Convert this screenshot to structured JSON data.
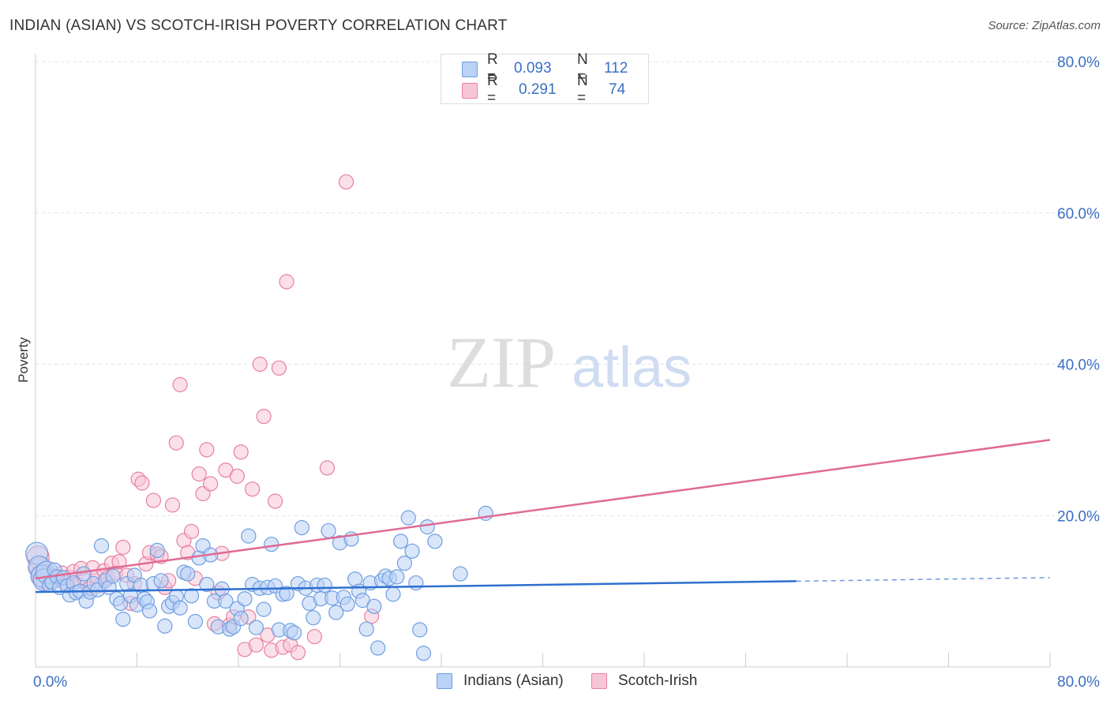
{
  "header": {
    "title": "INDIAN (ASIAN) VS SCOTCH-IRISH POVERTY CORRELATION CHART",
    "source": "Source: ZipAtlas.com"
  },
  "watermark": {
    "zip": "ZIP",
    "atlas": "atlas"
  },
  "stats": [
    {
      "r_label": "R =",
      "r_value": "0.093",
      "n_label": "N =",
      "n_value": "112",
      "color": "#6f9ee0",
      "fill": "#b9d2f5"
    },
    {
      "r_label": "R =",
      "r_value": "0.291",
      "n_label": "N =",
      "n_value": "74",
      "color": "#e87fa3",
      "fill": "#f7c6d6"
    }
  ],
  "legend": {
    "series_a": "Indians (Asian)",
    "series_b": "Scotch-Irish"
  },
  "colors": {
    "blue": "#6f9ee0",
    "blue_line": "#2e6fcf",
    "pink": "#e87fa3",
    "pink_line": "#e06a95",
    "tick_text": "#3a6fc4",
    "grid": "#e3e3e3"
  },
  "chart_data": {
    "type": "scatter",
    "xlabel": "",
    "ylabel": "Poverty",
    "xlim": [
      0,
      80
    ],
    "ylim": [
      0,
      80
    ],
    "x_tick_labels": [
      "0.0%",
      "80.0%"
    ],
    "y_ticks": [
      20,
      40,
      60,
      80
    ],
    "y_tick_labels": [
      "20.0%",
      "40.0%",
      "60.0%",
      "80.0%"
    ],
    "grid": "horizontal dashed",
    "series": [
      {
        "name": "Indians (Asian)",
        "points": [
          [
            0.1,
            15.0
          ],
          [
            0.3,
            13.2
          ],
          [
            0.5,
            12.0
          ],
          [
            0.7,
            11.5
          ],
          [
            0.9,
            12.5
          ],
          [
            1.1,
            10.8
          ],
          [
            1.3,
            11.2
          ],
          [
            1.5,
            12.8
          ],
          [
            1.7,
            11.9
          ],
          [
            1.9,
            10.5
          ],
          [
            2.2,
            11.8
          ],
          [
            2.5,
            10.7
          ],
          [
            2.7,
            9.5
          ],
          [
            3.0,
            11.1
          ],
          [
            3.2,
            9.8
          ],
          [
            3.5,
            10.0
          ],
          [
            3.8,
            12.3
          ],
          [
            4.0,
            8.7
          ],
          [
            4.3,
            9.9
          ],
          [
            4.6,
            11.0
          ],
          [
            4.9,
            10.2
          ],
          [
            5.2,
            16.0
          ],
          [
            5.5,
            11.4
          ],
          [
            5.8,
            10.5
          ],
          [
            6.1,
            12.0
          ],
          [
            6.4,
            9.0
          ],
          [
            6.7,
            8.4
          ],
          [
            6.9,
            6.3
          ],
          [
            7.2,
            11.0
          ],
          [
            7.5,
            9.4
          ],
          [
            7.8,
            12.1
          ],
          [
            8.0,
            8.2
          ],
          [
            8.3,
            10.8
          ],
          [
            8.6,
            9.0
          ],
          [
            8.8,
            8.6
          ],
          [
            9.0,
            7.4
          ],
          [
            9.3,
            11.0
          ],
          [
            9.6,
            15.4
          ],
          [
            9.9,
            11.4
          ],
          [
            10.2,
            5.4
          ],
          [
            10.5,
            8.0
          ],
          [
            10.8,
            8.5
          ],
          [
            11.1,
            9.3
          ],
          [
            11.4,
            7.8
          ],
          [
            11.7,
            12.5
          ],
          [
            12.0,
            12.3
          ],
          [
            12.3,
            9.4
          ],
          [
            12.6,
            6.0
          ],
          [
            12.9,
            14.4
          ],
          [
            13.2,
            16.0
          ],
          [
            13.5,
            10.9
          ],
          [
            13.8,
            14.8
          ],
          [
            14.1,
            8.7
          ],
          [
            14.4,
            5.3
          ],
          [
            14.7,
            10.3
          ],
          [
            15.0,
            8.7
          ],
          [
            15.3,
            5.0
          ],
          [
            15.6,
            5.3
          ],
          [
            15.9,
            7.7
          ],
          [
            16.2,
            6.4
          ],
          [
            16.5,
            9.0
          ],
          [
            16.8,
            17.3
          ],
          [
            17.1,
            10.9
          ],
          [
            17.4,
            5.2
          ],
          [
            17.7,
            10.4
          ],
          [
            18.0,
            7.6
          ],
          [
            18.3,
            10.5
          ],
          [
            18.6,
            16.2
          ],
          [
            18.9,
            10.7
          ],
          [
            19.2,
            4.9
          ],
          [
            19.5,
            9.6
          ],
          [
            19.8,
            9.7
          ],
          [
            20.1,
            4.8
          ],
          [
            20.4,
            4.5
          ],
          [
            20.7,
            11.0
          ],
          [
            21.0,
            18.4
          ],
          [
            21.3,
            10.4
          ],
          [
            21.6,
            8.4
          ],
          [
            21.9,
            6.5
          ],
          [
            22.2,
            10.8
          ],
          [
            22.5,
            9.0
          ],
          [
            22.8,
            10.8
          ],
          [
            23.1,
            18.0
          ],
          [
            23.4,
            9.1
          ],
          [
            23.7,
            7.2
          ],
          [
            24.0,
            16.4
          ],
          [
            24.3,
            9.2
          ],
          [
            24.6,
            8.3
          ],
          [
            24.9,
            16.9
          ],
          [
            25.2,
            11.6
          ],
          [
            25.5,
            10.0
          ],
          [
            25.8,
            8.8
          ],
          [
            26.1,
            5.0
          ],
          [
            26.4,
            11.1
          ],
          [
            26.7,
            8.0
          ],
          [
            27.0,
            2.5
          ],
          [
            27.3,
            11.4
          ],
          [
            27.6,
            12.0
          ],
          [
            27.9,
            11.7
          ],
          [
            28.2,
            9.6
          ],
          [
            28.5,
            11.9
          ],
          [
            28.8,
            16.6
          ],
          [
            29.1,
            13.7
          ],
          [
            29.4,
            19.7
          ],
          [
            29.7,
            15.3
          ],
          [
            30.0,
            11.1
          ],
          [
            30.3,
            4.9
          ],
          [
            30.6,
            1.8
          ],
          [
            30.9,
            18.5
          ],
          [
            31.5,
            16.6
          ],
          [
            33.5,
            12.3
          ],
          [
            35.5,
            20.3
          ]
        ]
      },
      {
        "name": "Scotch-Irish",
        "points": [
          [
            0.2,
            14.5
          ],
          [
            0.4,
            13.0
          ],
          [
            0.6,
            12.0
          ],
          [
            0.8,
            11.7
          ],
          [
            1.0,
            12.5
          ],
          [
            1.2,
            11.2
          ],
          [
            1.5,
            12.0
          ],
          [
            1.8,
            11.5
          ],
          [
            2.1,
            12.4
          ],
          [
            2.4,
            11.0
          ],
          [
            2.7,
            11.8
          ],
          [
            3.0,
            12.6
          ],
          [
            3.3,
            10.9
          ],
          [
            3.6,
            13.0
          ],
          [
            3.9,
            11.5
          ],
          [
            4.2,
            10.3
          ],
          [
            4.5,
            13.1
          ],
          [
            4.8,
            11.9
          ],
          [
            5.1,
            10.8
          ],
          [
            5.4,
            12.7
          ],
          [
            5.7,
            11.8
          ],
          [
            6.0,
            13.7
          ],
          [
            6.3,
            12.4
          ],
          [
            6.6,
            13.9
          ],
          [
            6.9,
            15.8
          ],
          [
            7.2,
            12.1
          ],
          [
            7.5,
            8.4
          ],
          [
            7.8,
            11.0
          ],
          [
            8.1,
            24.8
          ],
          [
            8.4,
            24.3
          ],
          [
            8.7,
            13.6
          ],
          [
            9.0,
            15.1
          ],
          [
            9.3,
            22.0
          ],
          [
            9.6,
            14.9
          ],
          [
            9.9,
            14.6
          ],
          [
            10.2,
            10.5
          ],
          [
            10.5,
            11.4
          ],
          [
            10.8,
            21.4
          ],
          [
            11.1,
            29.6
          ],
          [
            11.4,
            37.3
          ],
          [
            11.7,
            16.7
          ],
          [
            12.0,
            15.1
          ],
          [
            12.3,
            17.9
          ],
          [
            12.6,
            11.7
          ],
          [
            12.9,
            25.5
          ],
          [
            13.2,
            22.9
          ],
          [
            13.5,
            28.7
          ],
          [
            13.8,
            24.2
          ],
          [
            14.1,
            5.7
          ],
          [
            14.4,
            9.8
          ],
          [
            14.7,
            15.0
          ],
          [
            15.0,
            26.0
          ],
          [
            15.3,
            5.5
          ],
          [
            15.6,
            6.6
          ],
          [
            15.9,
            25.2
          ],
          [
            16.2,
            28.4
          ],
          [
            16.5,
            2.3
          ],
          [
            16.8,
            6.6
          ],
          [
            17.1,
            23.5
          ],
          [
            17.4,
            2.9
          ],
          [
            17.7,
            40.0
          ],
          [
            18.0,
            33.1
          ],
          [
            18.3,
            4.2
          ],
          [
            18.6,
            2.2
          ],
          [
            18.9,
            21.9
          ],
          [
            19.2,
            39.5
          ],
          [
            19.5,
            2.6
          ],
          [
            19.8,
            50.9
          ],
          [
            20.1,
            2.9
          ],
          [
            20.7,
            1.9
          ],
          [
            22.0,
            4.0
          ],
          [
            23.0,
            26.3
          ],
          [
            24.5,
            64.1
          ],
          [
            26.5,
            6.7
          ]
        ]
      }
    ],
    "trend_lines": [
      {
        "series": "Indians (Asian)",
        "x": [
          0,
          80
        ],
        "y": [
          9.9,
          11.8
        ],
        "solid_until_x": 60
      },
      {
        "series": "Scotch-Irish",
        "x": [
          0,
          80
        ],
        "y": [
          11.7,
          30.0
        ]
      }
    ]
  }
}
